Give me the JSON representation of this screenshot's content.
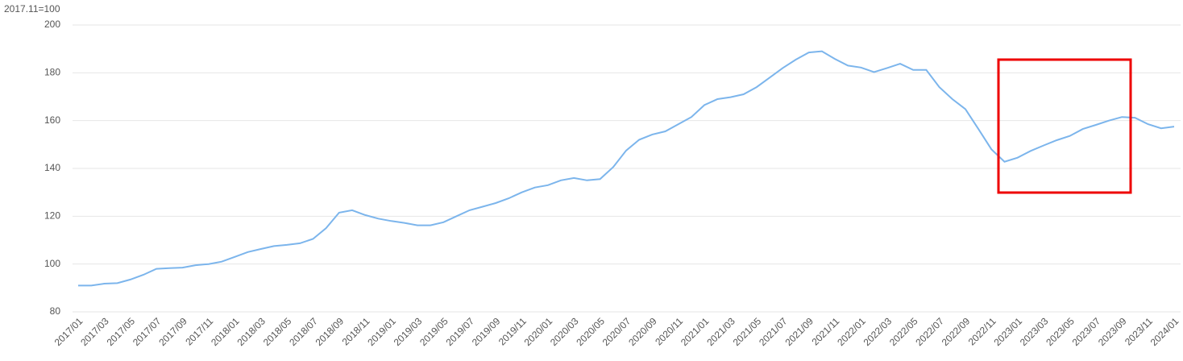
{
  "chart_data": {
    "type": "line",
    "unit_label": "2017.11=100",
    "categories": [
      "2017/01",
      null,
      "2017/03",
      null,
      "2017/05",
      null,
      "2017/07",
      null,
      "2017/09",
      null,
      "2017/11",
      null,
      "2018/01",
      null,
      "2018/03",
      null,
      "2018/05",
      null,
      "2018/07",
      null,
      "2018/09",
      null,
      "2018/11",
      null,
      "2019/01",
      null,
      "2019/03",
      null,
      "2019/05",
      null,
      "2019/07",
      null,
      "2019/09",
      null,
      "2019/11",
      null,
      "2020/01",
      null,
      "2020/03",
      null,
      "2020/05",
      null,
      "2020/07",
      null,
      "2020/09",
      null,
      "2020/11",
      null,
      "2021/01",
      null,
      "2021/03",
      null,
      "2021/05",
      null,
      "2021/07",
      null,
      "2021/09",
      null,
      "2021/11",
      null,
      "2022/01",
      null,
      "2022/03",
      null,
      "2022/05",
      null,
      "2022/07",
      null,
      "2022/09",
      null,
      "2022/11",
      null,
      "2023/01",
      null,
      "2023/03",
      null,
      "2023/05",
      null,
      "2023/07",
      null,
      "2023/09",
      null,
      "2023/11",
      null,
      "2024/01"
    ],
    "values": [
      91,
      91,
      91.8,
      92,
      93.5,
      95.5,
      98,
      98.3,
      98.5,
      99.5,
      100,
      101,
      103,
      105,
      106.3,
      107.5,
      108,
      108.7,
      110.5,
      115,
      121.5,
      122.5,
      120.5,
      119,
      118,
      117.2,
      116.2,
      116.2,
      117.5,
      120,
      122.5,
      124,
      125.5,
      127.5,
      130,
      132,
      133,
      135,
      136,
      135,
      135.5,
      140.5,
      147.5,
      152,
      154.2,
      155.5,
      158.5,
      161.5,
      166.5,
      169,
      169.8,
      171,
      174,
      178,
      182,
      185.5,
      188.5,
      189,
      185.8,
      183,
      182.2,
      180.3,
      182,
      183.8,
      181.2,
      181.2,
      174,
      169,
      164.8,
      156.5,
      148,
      142.8,
      144.5,
      147.3,
      149.6,
      151.8,
      153.6,
      156.5,
      158.2,
      160,
      161.5,
      161.2,
      158.5,
      156.8,
      157.5
    ],
    "color": "#7cb5ec",
    "ylim": [
      80,
      200
    ],
    "yticks": [
      80,
      100,
      120,
      140,
      160,
      180,
      200
    ],
    "grid": true
  }
}
